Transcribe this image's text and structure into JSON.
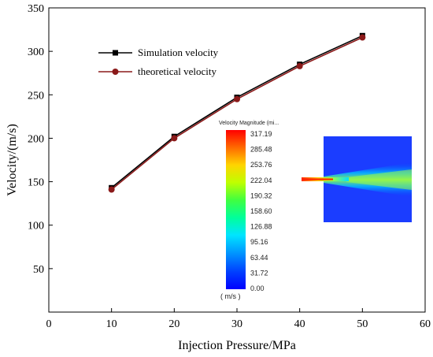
{
  "chart_data": {
    "type": "line",
    "xlabel": "Injection Pressure/MPa",
    "ylabel": "Velocity/(m/s)",
    "xlim": [
      0,
      60
    ],
    "ylim": [
      0,
      350
    ],
    "xticks": [
      0,
      10,
      20,
      30,
      40,
      50,
      60
    ],
    "yticks": [
      50,
      100,
      150,
      200,
      250,
      300,
      350
    ],
    "grid": false,
    "legend_position": "top-left",
    "series": [
      {
        "name": "Simulation velocity",
        "marker": "square",
        "color": "#000000",
        "x": [
          10,
          20,
          30,
          40,
          50
        ],
        "y": [
          143,
          202,
          247,
          285,
          318
        ]
      },
      {
        "name": "theoretical velocity",
        "marker": "circle",
        "color": "#8b1a1a",
        "x": [
          10,
          20,
          30,
          40,
          50
        ],
        "y": [
          141,
          200,
          245,
          283,
          316
        ]
      }
    ],
    "inset": {
      "colorbar_title": "Velocity Magnitude (mi...",
      "colorbar_unit": "( m/s )",
      "colorbar_labels": [
        "317.19",
        "285.48",
        "253.76",
        "222.04",
        "190.32",
        "158.60",
        "126.88",
        "95.16",
        "63.44",
        "31.72",
        "0.00"
      ],
      "colormap": [
        "#ff0000",
        "#ff6a00",
        "#ffd400",
        "#bfff00",
        "#40ff40",
        "#00ff9a",
        "#00e5ff",
        "#0090ff",
        "#0040ff",
        "#0000ff"
      ]
    }
  }
}
